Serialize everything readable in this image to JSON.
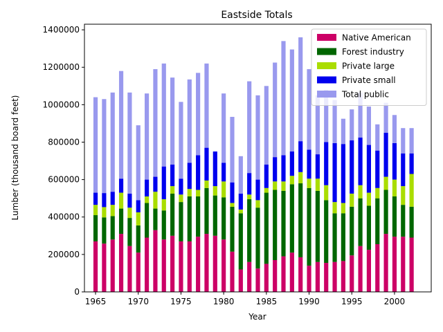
{
  "chart_data": {
    "type": "bar",
    "stacked": true,
    "title": "Eastside Totals",
    "xlabel": "Year",
    "ylabel": "Lumber (thousand board feet)",
    "ylim": [
      0,
      1430000
    ],
    "xlim": [
      1963.7,
      2004.3
    ],
    "x_ticks": [
      1965,
      1970,
      1975,
      1980,
      1985,
      1990,
      1995,
      2000
    ],
    "y_ticks": [
      0,
      200000,
      400000,
      600000,
      800000,
      1000000,
      1200000,
      1400000
    ],
    "grid": false,
    "legend_position": "top-right",
    "years": [
      1965,
      1966,
      1967,
      1968,
      1969,
      1970,
      1971,
      1972,
      1973,
      1974,
      1975,
      1976,
      1977,
      1978,
      1979,
      1980,
      1981,
      1982,
      1983,
      1984,
      1985,
      1986,
      1987,
      1988,
      1989,
      1990,
      1991,
      1992,
      1993,
      1994,
      1995,
      1996,
      1997,
      1998,
      1999,
      2000,
      2001,
      2002
    ],
    "series": [
      {
        "name": "Native American",
        "color": "#cc0066",
        "values": [
          270000,
          258000,
          280000,
          310000,
          245000,
          210000,
          290000,
          330000,
          280000,
          300000,
          270000,
          270000,
          295000,
          310000,
          300000,
          280000,
          215000,
          120000,
          160000,
          125000,
          150000,
          170000,
          190000,
          210000,
          185000,
          140000,
          160000,
          155000,
          160000,
          165000,
          195000,
          245000,
          225000,
          255000,
          310000,
          295000,
          295000,
          290000
        ]
      },
      {
        "name": "Forest industry",
        "color": "#006600",
        "values": [
          140000,
          140000,
          125000,
          135000,
          150000,
          145000,
          185000,
          115000,
          155000,
          225000,
          210000,
          240000,
          215000,
          245000,
          215000,
          225000,
          240000,
          300000,
          335000,
          325000,
          380000,
          375000,
          350000,
          365000,
          395000,
          415000,
          380000,
          335000,
          260000,
          255000,
          260000,
          255000,
          235000,
          245000,
          235000,
          215000,
          170000,
          165000
        ]
      },
      {
        "name": "Private large",
        "color": "#aadd00",
        "values": [
          55000,
          55000,
          60000,
          85000,
          55000,
          70000,
          35000,
          90000,
          60000,
          40000,
          40000,
          40000,
          35000,
          40000,
          50000,
          85000,
          20000,
          20000,
          25000,
          40000,
          25000,
          45000,
          50000,
          45000,
          60000,
          50000,
          65000,
          80000,
          60000,
          55000,
          70000,
          70000,
          70000,
          55000,
          70000,
          90000,
          100000,
          175000
        ]
      },
      {
        "name": "Private small",
        "color": "#0000ee",
        "values": [
          65000,
          75000,
          70000,
          75000,
          75000,
          65000,
          90000,
          80000,
          175000,
          115000,
          85000,
          140000,
          185000,
          175000,
          185000,
          100000,
          110000,
          85000,
          115000,
          110000,
          125000,
          130000,
          140000,
          130000,
          165000,
          155000,
          130000,
          230000,
          315000,
          315000,
          285000,
          255000,
          255000,
          200000,
          235000,
          195000,
          175000,
          110000
        ]
      },
      {
        "name": "Total public",
        "color": "#9999ee",
        "values": [
          510000,
          502000,
          530000,
          575000,
          540000,
          400000,
          460000,
          575000,
          550000,
          465000,
          410000,
          445000,
          440000,
          450000,
          0,
          370000,
          350000,
          200000,
          490000,
          450000,
          420000,
          505000,
          610000,
          545000,
          555000,
          430000,
          315000,
          280000,
          230000,
          135000,
          165000,
          240000,
          205000,
          140000,
          160000,
          150000,
          135000,
          135000
        ]
      }
    ]
  }
}
